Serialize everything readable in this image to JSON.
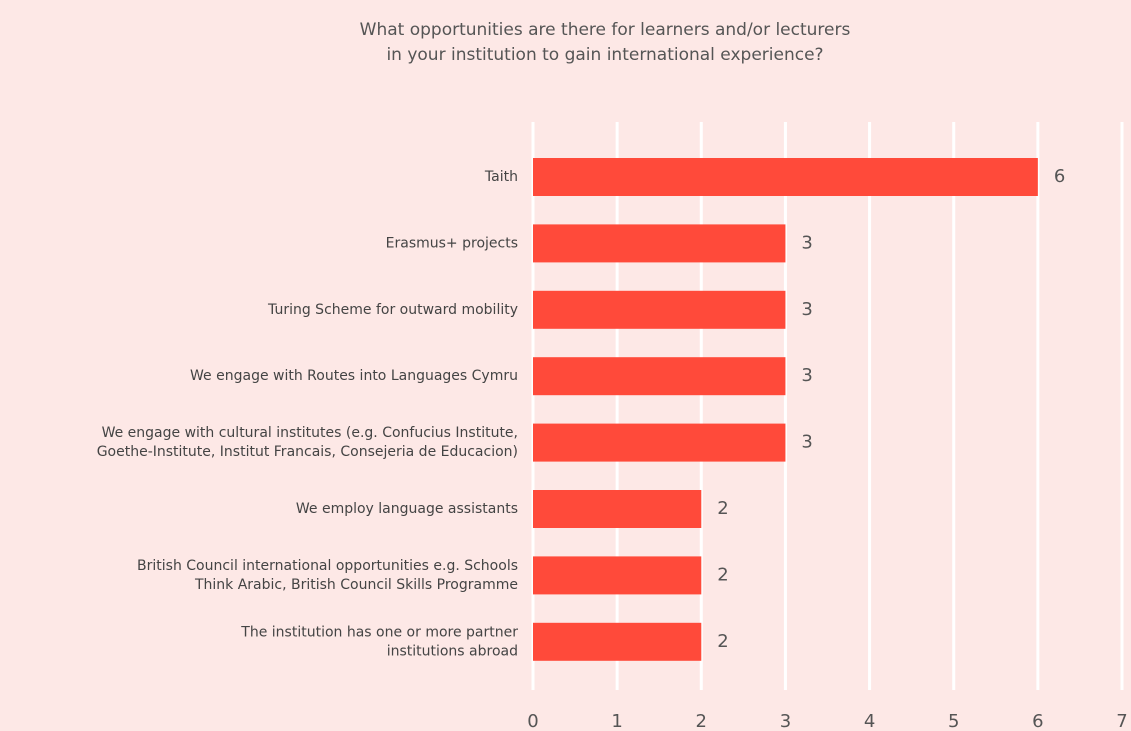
{
  "chart_data": {
    "type": "barh",
    "title": "What opportunities are there for learners and/or lecturers\nin your institution to gain international experience?",
    "categories": [
      "Taith",
      "Erasmus+ projects",
      "Turing Scheme for outward mobility",
      "We engage with Routes into Languages Cymru",
      "We engage with cultural institutes (e.g. Confucius Institute,\nGoethe-Institute, Institut Francais, Consejeria de Educacion)",
      "We employ language assistants",
      "British Council international opportunities e.g. Schools\nThink Arabic, British Council Skills Programme",
      "The institution has one or more partner\ninstitutions abroad"
    ],
    "values": [
      6,
      3,
      3,
      3,
      3,
      2,
      2,
      2
    ],
    "color": "#ff4a3a",
    "xlim": [
      0,
      7
    ],
    "xticks": [
      0,
      1,
      2,
      3,
      4,
      5,
      6,
      7
    ],
    "grid": true
  }
}
